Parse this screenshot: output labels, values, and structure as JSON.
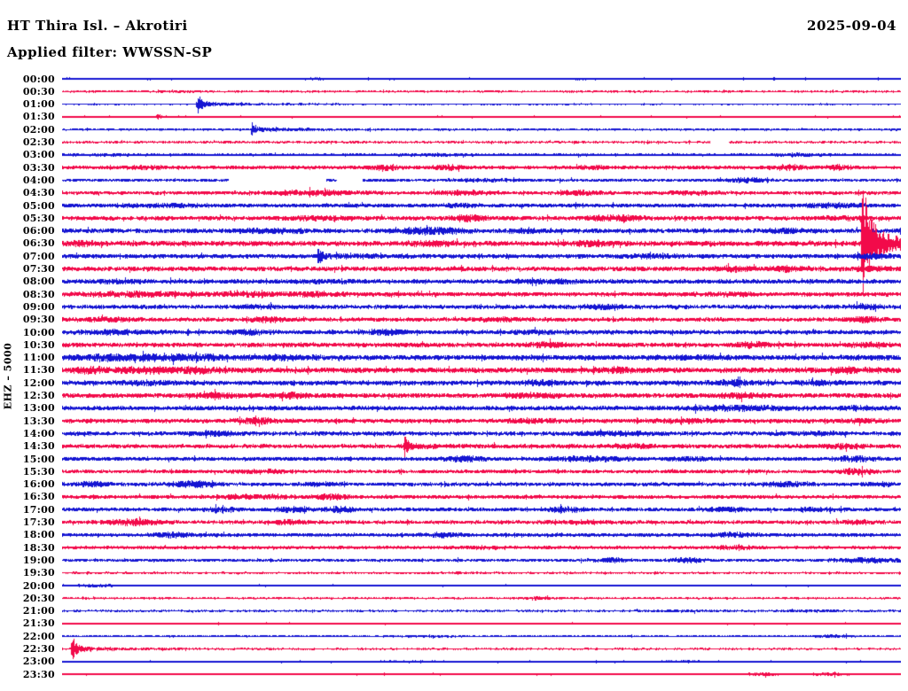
{
  "chart_data": {
    "type": "helicorder",
    "station": "HT Thira Isl. – Akrotiri",
    "date": "2025-09-04",
    "filter_line": "Applied filter: WWSSN-SP",
    "applied_filter": "WWSSN-SP",
    "channel_scale_label": "EHZ – 5000",
    "row_duration_minutes": 30,
    "time_span": [
      "00:00",
      "24:00"
    ],
    "legend_position": "none",
    "grid": false,
    "units": "amp and burst/event amplitudes in pixels (half-amplitude); burst format [center_fraction, sigma_fraction, extra_amp]; event format [position_fraction, peak_amp]; gap format [start_fraction, end_fraction] of the 30-minute row",
    "colors": {
      "even_rows_blue": "#1515d2",
      "odd_rows_red": "#f20a4a",
      "background": "#ffffff",
      "text": "#000000"
    },
    "rows": [
      {
        "t": "00:00",
        "color": "blue",
        "amp": 1.3,
        "bursts": [
          [
            0.3,
            0.02,
            0.4
          ],
          [
            0.62,
            0.02,
            0.4
          ]
        ]
      },
      {
        "t": "00:30",
        "color": "red",
        "amp": 1.3,
        "bursts": [
          [
            0.15,
            0.03,
            0.4
          ]
        ]
      },
      {
        "t": "01:00",
        "color": "blue",
        "amp": 1.1,
        "events": [
          [
            0.161,
            11
          ]
        ]
      },
      {
        "t": "01:30",
        "color": "red",
        "amp": 1.2,
        "events": [
          [
            0.113,
            3
          ]
        ]
      },
      {
        "t": "02:00",
        "color": "blue",
        "amp": 1.4,
        "events": [
          [
            0.226,
            8.5
          ]
        ]
      },
      {
        "t": "02:30",
        "color": "red",
        "amp": 1.4,
        "gaps": [
          [
            0.772,
            0.794
          ]
        ]
      },
      {
        "t": "03:00",
        "color": "blue",
        "amp": 1.7,
        "bursts": [
          [
            0.05,
            0.03,
            0.6
          ],
          [
            0.45,
            0.04,
            0.5
          ],
          [
            0.88,
            0.03,
            0.8
          ]
        ]
      },
      {
        "t": "03:30",
        "color": "red",
        "amp": 2.1,
        "bursts": [
          [
            0.1,
            0.025,
            1.2
          ],
          [
            0.385,
            0.018,
            2.2
          ],
          [
            0.462,
            0.02,
            1.8
          ],
          [
            0.635,
            0.02,
            1.2
          ],
          [
            0.867,
            0.02,
            2.0
          ],
          [
            0.925,
            0.015,
            1.6
          ]
        ]
      },
      {
        "t": "04:00",
        "color": "blue",
        "amp": 1.9,
        "gaps": [
          [
            0.198,
            0.315
          ],
          [
            0.327,
            0.358
          ]
        ],
        "bursts": [
          [
            0.5,
            0.03,
            0.8
          ],
          [
            0.817,
            0.02,
            1.6
          ]
        ]
      },
      {
        "t": "04:30",
        "color": "red",
        "amp": 2.2,
        "bursts": [
          [
            0.3,
            0.05,
            1.6
          ],
          [
            0.48,
            0.03,
            1.4
          ],
          [
            0.62,
            0.02,
            1.4
          ],
          [
            0.75,
            0.03,
            1.0
          ]
        ]
      },
      {
        "t": "05:00",
        "color": "blue",
        "amp": 2.4,
        "bursts": [
          [
            0.12,
            0.04,
            1.0
          ],
          [
            0.47,
            0.02,
            0.8
          ],
          [
            0.92,
            0.03,
            1.4
          ]
        ]
      },
      {
        "t": "05:30",
        "color": "red",
        "amp": 2.5,
        "bursts": [
          [
            0.3,
            0.04,
            1.0
          ],
          [
            0.483,
            0.02,
            2.2
          ],
          [
            0.66,
            0.03,
            2.0
          ],
          [
            0.93,
            0.03,
            0.8
          ]
        ]
      },
      {
        "t": "06:00",
        "color": "blue",
        "amp": 2.6,
        "bursts": [
          [
            0.25,
            0.04,
            1.4
          ],
          [
            0.44,
            0.035,
            2.6
          ],
          [
            0.55,
            0.02,
            1.0
          ],
          [
            0.86,
            0.025,
            1.4
          ]
        ]
      },
      {
        "t": "06:30",
        "color": "red",
        "amp": 2.9,
        "bursts": [
          [
            0.02,
            0.02,
            1.4
          ],
          [
            0.44,
            0.03,
            1.2
          ],
          [
            0.632,
            0.02,
            1.8
          ]
        ],
        "events": [
          [
            0.953,
            58
          ]
        ]
      },
      {
        "t": "07:00",
        "color": "blue",
        "amp": 2.6,
        "events": [
          [
            0.305,
            8
          ]
        ],
        "bursts": [
          [
            0.7,
            0.03,
            0.9
          ],
          [
            0.965,
            0.02,
            1.6
          ]
        ]
      },
      {
        "t": "07:30",
        "color": "red",
        "amp": 2.6,
        "bursts": [
          [
            0.8,
            0.02,
            2.0
          ],
          [
            0.868,
            0.02,
            2.4
          ],
          [
            0.965,
            0.02,
            1.4
          ]
        ]
      },
      {
        "t": "08:00",
        "color": "blue",
        "amp": 2.6,
        "bursts": [
          [
            0.07,
            0.03,
            0.8
          ],
          [
            0.32,
            0.03,
            0.8
          ],
          [
            0.58,
            0.03,
            1.0
          ]
        ]
      },
      {
        "t": "08:30",
        "color": "red",
        "amp": 2.6,
        "bursts": [
          [
            0.08,
            0.06,
            1.4
          ],
          [
            0.22,
            0.05,
            1.2
          ],
          [
            0.3,
            0.03,
            1.2
          ],
          [
            0.79,
            0.025,
            1.0
          ]
        ]
      },
      {
        "t": "09:00",
        "color": "blue",
        "amp": 2.4,
        "bursts": [
          [
            0.23,
            0.03,
            1.0
          ],
          [
            0.645,
            0.02,
            1.8
          ],
          [
            0.955,
            0.02,
            1.6
          ]
        ]
      },
      {
        "t": "09:30",
        "color": "red",
        "amp": 2.4,
        "bursts": [
          [
            0.05,
            0.04,
            1.0
          ],
          [
            0.245,
            0.02,
            2.0
          ],
          [
            0.52,
            0.03,
            1.0
          ],
          [
            0.955,
            0.02,
            1.8
          ]
        ]
      },
      {
        "t": "10:00",
        "color": "blue",
        "amp": 2.6,
        "bursts": [
          [
            0.06,
            0.04,
            1.2
          ],
          [
            0.225,
            0.02,
            1.6
          ],
          [
            0.385,
            0.02,
            2.0
          ],
          [
            0.56,
            0.03,
            1.0
          ]
        ]
      },
      {
        "t": "10:30",
        "color": "red",
        "amp": 2.6,
        "bursts": [
          [
            0.58,
            0.02,
            1.8
          ],
          [
            0.82,
            0.02,
            1.8
          ],
          [
            0.96,
            0.025,
            1.2
          ]
        ]
      },
      {
        "t": "11:00",
        "color": "blue",
        "amp": 3.1,
        "bursts": [
          [
            0.05,
            0.04,
            1.8
          ],
          [
            0.12,
            0.03,
            2.0
          ],
          [
            0.17,
            0.02,
            1.8
          ],
          [
            0.26,
            0.03,
            1.2
          ],
          [
            0.75,
            0.03,
            0.9
          ]
        ]
      },
      {
        "t": "11:30",
        "color": "red",
        "amp": 3.1,
        "bursts": [
          [
            0.03,
            0.02,
            2.0
          ],
          [
            0.1,
            0.04,
            1.8
          ],
          [
            0.165,
            0.02,
            2.0
          ],
          [
            0.66,
            0.02,
            1.6
          ],
          [
            0.94,
            0.02,
            1.6
          ]
        ]
      },
      {
        "t": "12:00",
        "color": "blue",
        "amp": 2.8,
        "bursts": [
          [
            0.1,
            0.03,
            1.2
          ],
          [
            0.57,
            0.02,
            1.6
          ],
          [
            0.8,
            0.02,
            1.6
          ],
          [
            0.9,
            0.025,
            1.2
          ]
        ]
      },
      {
        "t": "12:30",
        "color": "red",
        "amp": 2.8,
        "bursts": [
          [
            0.185,
            0.02,
            1.8
          ],
          [
            0.27,
            0.02,
            1.8
          ],
          [
            0.56,
            0.03,
            1.2
          ],
          [
            0.81,
            0.025,
            1.6
          ]
        ]
      },
      {
        "t": "13:00",
        "color": "blue",
        "amp": 2.6,
        "bursts": [
          [
            0.8,
            0.06,
            1.6
          ],
          [
            0.95,
            0.02,
            1.2
          ]
        ]
      },
      {
        "t": "13:30",
        "color": "red",
        "amp": 2.6,
        "bursts": [
          [
            0.235,
            0.02,
            1.8
          ],
          [
            0.56,
            0.03,
            1.0
          ],
          [
            0.74,
            0.03,
            1.2
          ],
          [
            0.955,
            0.02,
            1.2
          ]
        ]
      },
      {
        "t": "14:00",
        "color": "blue",
        "amp": 2.4,
        "bursts": [
          [
            0.185,
            0.02,
            1.6
          ],
          [
            0.66,
            0.05,
            1.2
          ],
          [
            0.9,
            0.03,
            1.0
          ]
        ]
      },
      {
        "t": "14:30",
        "color": "red",
        "amp": 2.4,
        "events": [
          [
            0.408,
            9
          ]
        ],
        "bursts": [
          [
            0.68,
            0.03,
            1.2
          ],
          [
            0.93,
            0.025,
            1.4
          ]
        ]
      },
      {
        "t": "15:00",
        "color": "blue",
        "amp": 2.4,
        "bursts": [
          [
            0.478,
            0.02,
            2.0
          ],
          [
            0.63,
            0.04,
            1.6
          ],
          [
            0.745,
            0.02,
            1.2
          ],
          [
            0.945,
            0.02,
            2.0
          ]
        ]
      },
      {
        "t": "15:30",
        "color": "red",
        "amp": 2.2,
        "bursts": [
          [
            0.24,
            0.03,
            1.0
          ],
          [
            0.948,
            0.02,
            2.2
          ]
        ]
      },
      {
        "t": "16:00",
        "color": "blue",
        "amp": 2.2,
        "bursts": [
          [
            0.035,
            0.02,
            1.6
          ],
          [
            0.155,
            0.025,
            2.6
          ],
          [
            0.305,
            0.02,
            1.2
          ],
          [
            0.86,
            0.025,
            1.6
          ],
          [
            0.975,
            0.015,
            1.4
          ]
        ]
      },
      {
        "t": "16:30",
        "color": "red",
        "amp": 2.2,
        "bursts": [
          [
            0.21,
            0.02,
            1.6
          ],
          [
            0.255,
            0.02,
            1.4
          ],
          [
            0.32,
            0.02,
            2.0
          ]
        ]
      },
      {
        "t": "17:00",
        "color": "blue",
        "amp": 2.2,
        "bursts": [
          [
            0.19,
            0.02,
            1.6
          ],
          [
            0.275,
            0.02,
            1.8
          ],
          [
            0.33,
            0.018,
            2.0
          ],
          [
            0.6,
            0.02,
            2.0
          ],
          [
            0.795,
            0.025,
            1.2
          ],
          [
            0.9,
            0.025,
            1.2
          ]
        ]
      },
      {
        "t": "17:30",
        "color": "red",
        "amp": 2.2,
        "bursts": [
          [
            0.085,
            0.035,
            2.0
          ],
          [
            0.27,
            0.02,
            1.4
          ],
          [
            0.625,
            0.03,
            1.0
          ],
          [
            0.945,
            0.02,
            1.2
          ]
        ]
      },
      {
        "t": "18:00",
        "color": "blue",
        "amp": 2.2,
        "bursts": [
          [
            0.13,
            0.02,
            2.0
          ],
          [
            0.455,
            0.02,
            1.6
          ],
          [
            0.8,
            0.025,
            1.6
          ]
        ]
      },
      {
        "t": "18:30",
        "color": "red",
        "amp": 1.9,
        "bursts": [
          [
            0.5,
            0.03,
            0.8
          ],
          [
            0.8,
            0.03,
            1.0
          ]
        ]
      },
      {
        "t": "19:00",
        "color": "blue",
        "amp": 1.9,
        "bursts": [
          [
            0.655,
            0.02,
            1.4
          ],
          [
            0.745,
            0.02,
            1.8
          ],
          [
            0.96,
            0.035,
            1.8
          ]
        ]
      },
      {
        "t": "19:30",
        "color": "red",
        "amp": 1.3,
        "bursts": [
          [
            0.47,
            0.03,
            0.5
          ]
        ]
      },
      {
        "t": "20:00",
        "color": "blue",
        "amp": 1.4,
        "bursts": [
          [
            0.04,
            0.02,
            0.8
          ]
        ]
      },
      {
        "t": "20:30",
        "color": "red",
        "amp": 1.3,
        "bursts": [
          [
            0.565,
            0.015,
            1.2
          ]
        ]
      },
      {
        "t": "21:00",
        "color": "blue",
        "amp": 1.3,
        "bursts": [
          [
            0.74,
            0.03,
            0.6
          ],
          [
            0.9,
            0.03,
            0.6
          ]
        ]
      },
      {
        "t": "21:30",
        "color": "red",
        "amp": 1.2
      },
      {
        "t": "22:00",
        "color": "blue",
        "amp": 1.3,
        "bursts": [
          [
            0.44,
            0.03,
            0.5
          ],
          [
            0.92,
            0.02,
            0.8
          ]
        ]
      },
      {
        "t": "22:30",
        "color": "red",
        "amp": 1.2,
        "events": [
          [
            0.012,
            13
          ]
        ]
      },
      {
        "t": "23:00",
        "color": "blue",
        "amp": 1.3,
        "bursts": [
          [
            0.42,
            0.03,
            0.5
          ],
          [
            0.75,
            0.03,
            0.5
          ]
        ]
      },
      {
        "t": "23:30",
        "color": "red",
        "amp": 1.1,
        "bursts": [
          [
            0.835,
            0.02,
            1.2
          ],
          [
            0.92,
            0.02,
            1.0
          ]
        ]
      }
    ]
  }
}
